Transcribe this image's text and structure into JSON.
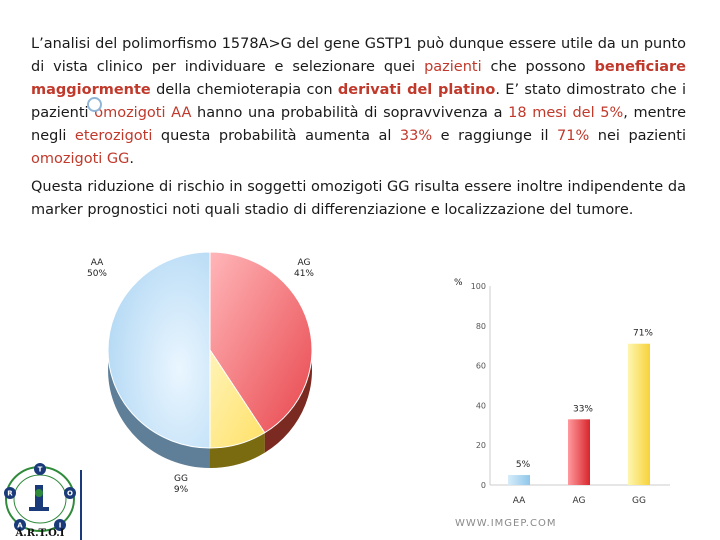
{
  "text": {
    "p1": [
      {
        "t": "L’analisi del polimorfismo 1578A>G del gene GSTP1 può dunque essere utile da un punto di vista clinico per individuare e selezionare quei ",
        "c": "",
        "b": false
      },
      {
        "t": "pazienti",
        "c": "red",
        "b": false
      },
      {
        "t": " che possono ",
        "c": "",
        "b": false
      },
      {
        "t": "beneficiare maggiormente",
        "c": "red",
        "b": true
      },
      {
        "t": " della chemioterapia con ",
        "c": "",
        "b": false
      },
      {
        "t": "derivati del platino",
        "c": "red",
        "b": true
      },
      {
        "t": ". E’ stato dimostrato che i pazienti ",
        "c": "",
        "b": false
      },
      {
        "t": "omozigoti AA",
        "c": "red",
        "b": false
      },
      {
        "t": " hanno una probabilità di sopravvivenza a ",
        "c": "",
        "b": false
      },
      {
        "t": "18 mesi del 5%",
        "c": "red",
        "b": false
      },
      {
        "t": ", mentre negli ",
        "c": "",
        "b": false
      },
      {
        "t": "eterozigoti",
        "c": "red",
        "b": false
      },
      {
        "t": " questa probabilità aumenta al ",
        "c": "",
        "b": false
      },
      {
        "t": "33%",
        "c": "red",
        "b": false
      },
      {
        "t": " e raggiunge il ",
        "c": "",
        "b": false
      },
      {
        "t": "71%",
        "c": "red",
        "b": false
      },
      {
        "t": " nei pazienti ",
        "c": "",
        "b": false
      },
      {
        "t": "omozigoti GG",
        "c": "red",
        "b": false
      },
      {
        "t": ".",
        "c": "",
        "b": false
      }
    ],
    "p2": "Questa riduzione di rischio in soggetti omozigoti GG risulta essere inoltre indipendente da marker prognostici noti quali stadio di differenziazione e localizzazione del tumore."
  },
  "footer": {
    "logo_text": "A.R.T.O.I",
    "logo_letters": [
      "T",
      "R",
      "O",
      "A",
      "I"
    ],
    "url": "WWW.IMGEP.COM"
  },
  "colors": {
    "aa": "#bfe0f6",
    "ag": "#e8474d",
    "gg": "#ffe56a",
    "text_red": "#c0392b"
  },
  "chart_data": [
    {
      "type": "pie",
      "slices": [
        {
          "name": "AA",
          "value": 50,
          "label": "AA\n50%"
        },
        {
          "name": "AG",
          "value": 41,
          "label": "AG\n41%"
        },
        {
          "name": "GG",
          "value": 9,
          "label": "GG\n9%"
        }
      ]
    },
    {
      "type": "bar",
      "ylabel": "%",
      "categories": [
        "AA",
        "AG",
        "GG"
      ],
      "values": [
        5,
        33,
        71
      ],
      "data_labels": [
        "5%",
        "33%",
        "71%"
      ],
      "ylim": [
        0,
        100
      ],
      "yticks": [
        0,
        20,
        40,
        60,
        80,
        100
      ],
      "grid": false
    }
  ]
}
